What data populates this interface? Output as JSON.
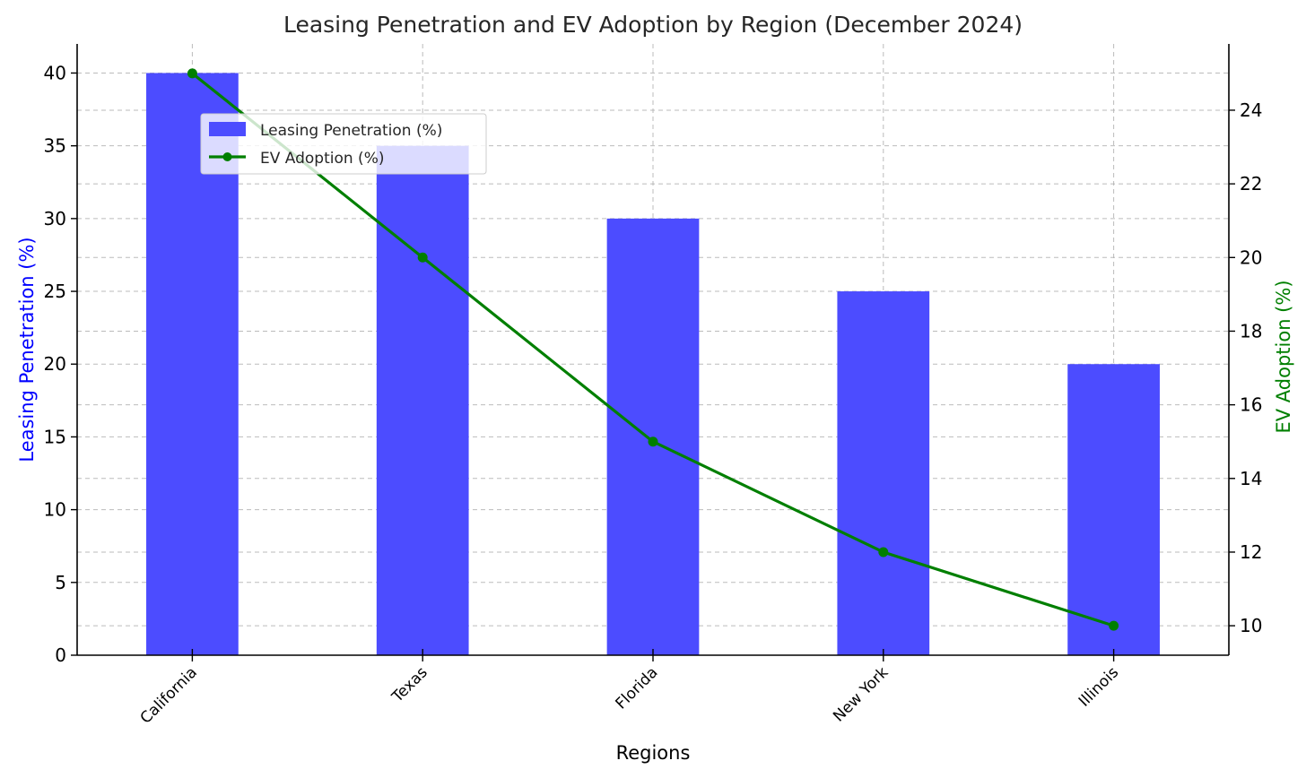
{
  "chart_data": {
    "type": "bar",
    "title": "Leasing Penetration and EV Adoption by Region (December 2024)",
    "xlabel": "Regions",
    "ylabel": "Leasing Penetration (%)",
    "y2label": "EV Adoption (%)",
    "categories": [
      "California",
      "Texas",
      "Florida",
      "New York",
      "Illinois"
    ],
    "series": [
      {
        "name": "Leasing Penetration (%)",
        "type": "bar",
        "axis": "left",
        "color": "#4c4cff",
        "values": [
          40,
          35,
          30,
          25,
          20
        ]
      },
      {
        "name": "EV Adoption (%)",
        "type": "line",
        "axis": "right",
        "color": "#007f00",
        "marker": "circle",
        "values": [
          25,
          20,
          15,
          12,
          10
        ]
      }
    ],
    "ylim": [
      0,
      42
    ],
    "y2lim": [
      9.2,
      25.8
    ],
    "yticks": [
      0,
      5,
      10,
      15,
      20,
      25,
      30,
      35,
      40
    ],
    "y2ticks": [
      10,
      12,
      14,
      16,
      18,
      20,
      22,
      24
    ],
    "ylabel_color": "#0000ff",
    "y2label_color": "#007f00",
    "grid": true,
    "legend_placement": "upper-left"
  }
}
